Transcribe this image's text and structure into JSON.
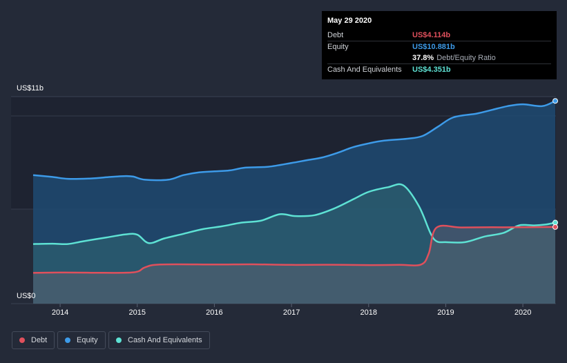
{
  "tooltip": {
    "date": "May 29 2020",
    "rows": [
      {
        "label": "Debt",
        "value": "US$4.114b",
        "color": "#e0505c"
      },
      {
        "label": "Equity",
        "value": "US$10.881b",
        "color": "#3d9be9"
      },
      {
        "ratio_value": "37.8%",
        "ratio_label": "Debt/Equity Ratio"
      },
      {
        "label": "Cash And Equivalents",
        "value": "US$4.351b",
        "color": "#5ee2d4"
      }
    ]
  },
  "legend": [
    {
      "label": "Debt",
      "color": "#e0505c"
    },
    {
      "label": "Equity",
      "color": "#3d9be9"
    },
    {
      "label": "Cash And Equivalents",
      "color": "#5ee2d4"
    }
  ],
  "chart_data": {
    "type": "area",
    "title": "",
    "ylim": [
      0,
      11
    ],
    "y_tick_labels": [
      {
        "value": 11,
        "label": "US$11b"
      },
      {
        "value": 0,
        "label": "US$0"
      }
    ],
    "xlim": [
      2013.65,
      2020.42
    ],
    "x_ticks": [
      "2014",
      "2015",
      "2016",
      "2017",
      "2018",
      "2019",
      "2020"
    ],
    "series": [
      {
        "name": "Equity",
        "color": "#3d9be9",
        "points": [
          [
            2013.65,
            6.9
          ],
          [
            2013.9,
            6.8
          ],
          [
            2014.1,
            6.7
          ],
          [
            2014.4,
            6.72
          ],
          [
            2014.65,
            6.8
          ],
          [
            2014.85,
            6.85
          ],
          [
            2014.95,
            6.82
          ],
          [
            2015.1,
            6.65
          ],
          [
            2015.4,
            6.65
          ],
          [
            2015.6,
            6.9
          ],
          [
            2015.8,
            7.05
          ],
          [
            2016.0,
            7.1
          ],
          [
            2016.2,
            7.15
          ],
          [
            2016.4,
            7.3
          ],
          [
            2016.7,
            7.35
          ],
          [
            2017.0,
            7.55
          ],
          [
            2017.2,
            7.7
          ],
          [
            2017.4,
            7.85
          ],
          [
            2017.6,
            8.1
          ],
          [
            2017.8,
            8.4
          ],
          [
            2018.0,
            8.6
          ],
          [
            2018.2,
            8.75
          ],
          [
            2018.5,
            8.85
          ],
          [
            2018.7,
            9.0
          ],
          [
            2018.9,
            9.5
          ],
          [
            2019.1,
            10.0
          ],
          [
            2019.4,
            10.2
          ],
          [
            2019.6,
            10.4
          ],
          [
            2019.8,
            10.6
          ],
          [
            2020.0,
            10.7
          ],
          [
            2020.25,
            10.6
          ],
          [
            2020.42,
            10.881
          ]
        ]
      },
      {
        "name": "Cash And Equivalents",
        "color": "#5ee2d4",
        "points": [
          [
            2013.65,
            3.2
          ],
          [
            2013.9,
            3.22
          ],
          [
            2014.1,
            3.2
          ],
          [
            2014.3,
            3.35
          ],
          [
            2014.6,
            3.55
          ],
          [
            2014.85,
            3.72
          ],
          [
            2015.0,
            3.7
          ],
          [
            2015.15,
            3.25
          ],
          [
            2015.35,
            3.5
          ],
          [
            2015.6,
            3.75
          ],
          [
            2015.85,
            4.0
          ],
          [
            2016.1,
            4.15
          ],
          [
            2016.35,
            4.35
          ],
          [
            2016.6,
            4.45
          ],
          [
            2016.85,
            4.8
          ],
          [
            2017.05,
            4.7
          ],
          [
            2017.3,
            4.75
          ],
          [
            2017.55,
            5.1
          ],
          [
            2017.8,
            5.6
          ],
          [
            2018.0,
            6.0
          ],
          [
            2018.25,
            6.25
          ],
          [
            2018.45,
            6.35
          ],
          [
            2018.65,
            5.25
          ],
          [
            2018.8,
            3.8
          ],
          [
            2018.88,
            3.35
          ],
          [
            2019.0,
            3.3
          ],
          [
            2019.25,
            3.3
          ],
          [
            2019.5,
            3.6
          ],
          [
            2019.75,
            3.8
          ],
          [
            2019.95,
            4.2
          ],
          [
            2020.15,
            4.2
          ],
          [
            2020.3,
            4.25
          ],
          [
            2020.42,
            4.351
          ]
        ]
      },
      {
        "name": "Debt",
        "color": "#e0505c",
        "points": [
          [
            2013.65,
            1.65
          ],
          [
            2014.0,
            1.67
          ],
          [
            2014.4,
            1.66
          ],
          [
            2014.95,
            1.68
          ],
          [
            2015.1,
            1.95
          ],
          [
            2015.3,
            2.1
          ],
          [
            2016.0,
            2.1
          ],
          [
            2016.5,
            2.11
          ],
          [
            2017.0,
            2.08
          ],
          [
            2017.5,
            2.09
          ],
          [
            2018.0,
            2.07
          ],
          [
            2018.4,
            2.08
          ],
          [
            2018.68,
            2.1
          ],
          [
            2018.78,
            2.7
          ],
          [
            2018.88,
            4.08
          ],
          [
            2019.2,
            4.09
          ],
          [
            2019.6,
            4.1
          ],
          [
            2020.0,
            4.1
          ],
          [
            2020.42,
            4.114
          ]
        ]
      }
    ]
  }
}
